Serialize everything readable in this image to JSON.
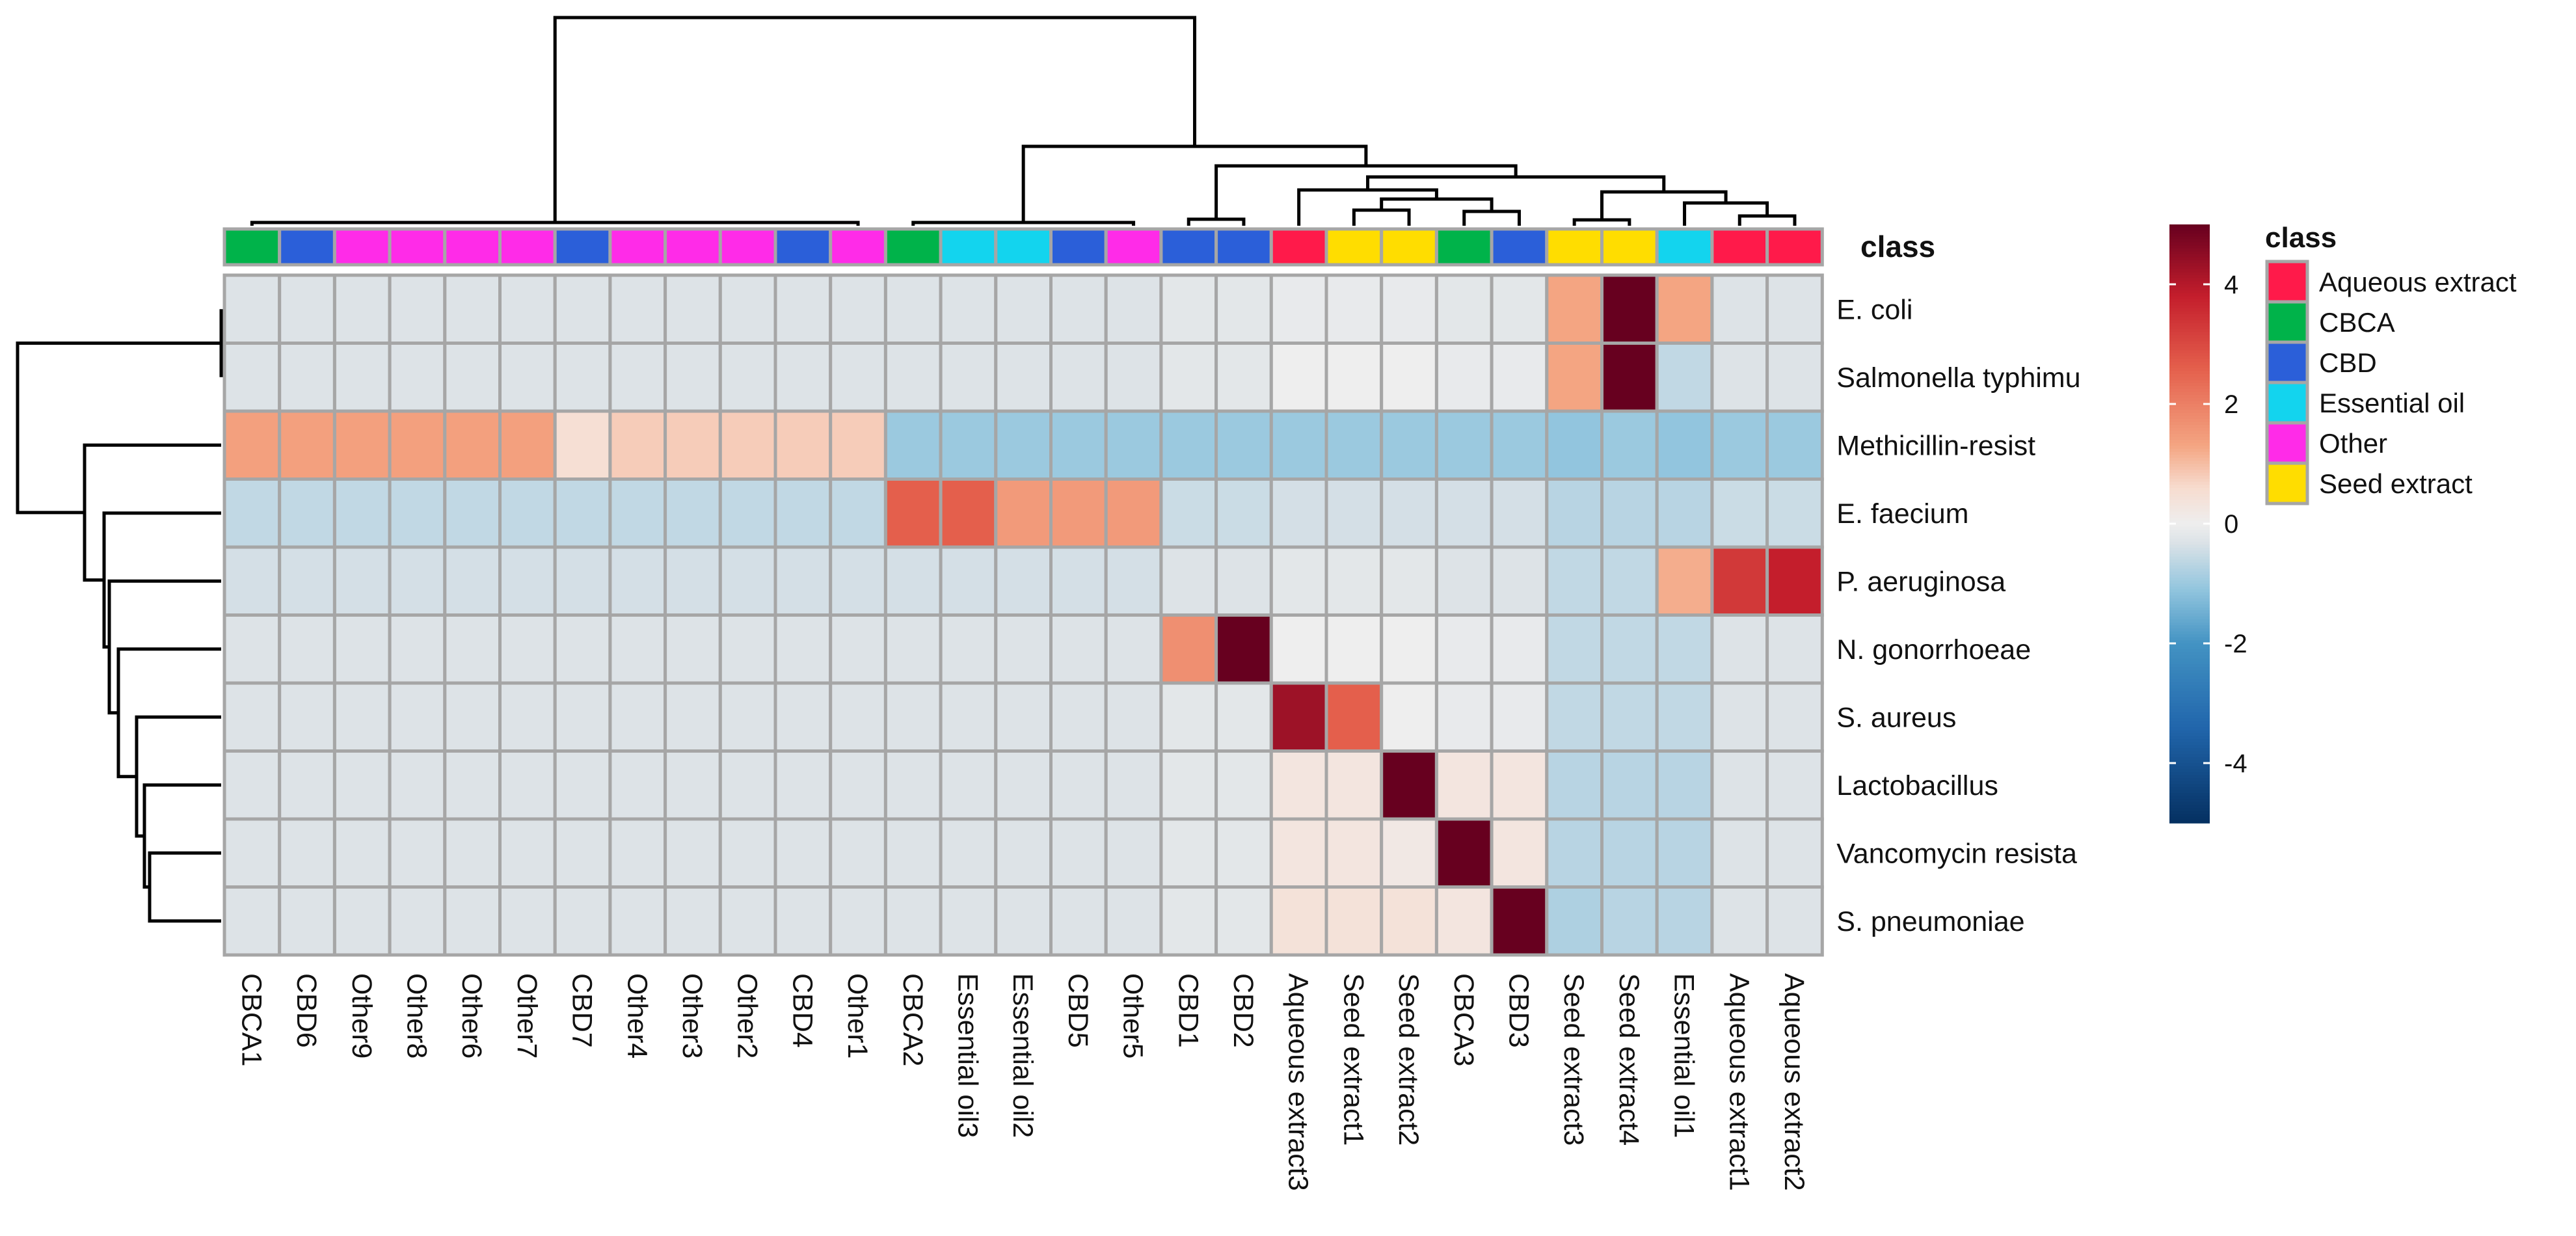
{
  "chart_data": {
    "type": "heatmap",
    "title": "",
    "columns": [
      "CBCA1",
      "CBD6",
      "Other9",
      "Other8",
      "Other6",
      "Other7",
      "CBD7",
      "Other4",
      "Other3",
      "Other2",
      "CBD4",
      "Other1",
      "CBCA2",
      "Essential oil3",
      "Essential oil2",
      "CBD5",
      "Other5",
      "CBD1",
      "CBD2",
      "Aqueous extract3",
      "Seed extract1",
      "Seed extract2",
      "CBCA3",
      "CBD3",
      "Seed extract3",
      "Seed extract4",
      "Essential oil1",
      "Aqueous extract1",
      "Aqueous extract2"
    ],
    "column_classes": [
      "CBCA",
      "CBD",
      "Other",
      "Other",
      "Other",
      "Other",
      "CBD",
      "Other",
      "Other",
      "Other",
      "CBD",
      "Other",
      "CBCA",
      "Essential oil",
      "Essential oil",
      "CBD",
      "Other",
      "CBD",
      "CBD",
      "Aqueous extract",
      "Seed extract",
      "Seed extract",
      "CBCA",
      "CBD",
      "Seed extract",
      "Seed extract",
      "Essential oil",
      "Aqueous extract",
      "Aqueous extract"
    ],
    "rows": [
      "E. coli",
      "Salmonella typhimu",
      "Methicillin-resist",
      "E. faecium",
      "P. aeruginosa",
      "N. gonorrhoeae",
      "S. aureus",
      "Lactobacillus",
      "Vancomycin resista",
      "S. pneumoniae"
    ],
    "values": [
      [
        -0.3,
        -0.3,
        -0.3,
        -0.3,
        -0.3,
        -0.3,
        -0.3,
        -0.3,
        -0.3,
        -0.3,
        -0.3,
        -0.3,
        -0.3,
        -0.3,
        -0.3,
        -0.3,
        -0.3,
        -0.2,
        -0.2,
        -0.1,
        -0.1,
        -0.1,
        -0.2,
        -0.2,
        1.3,
        5.0,
        1.3,
        -0.3,
        -0.3
      ],
      [
        -0.3,
        -0.3,
        -0.3,
        -0.3,
        -0.3,
        -0.3,
        -0.3,
        -0.3,
        -0.3,
        -0.3,
        -0.3,
        -0.3,
        -0.3,
        -0.3,
        -0.3,
        -0.3,
        -0.3,
        -0.2,
        -0.2,
        0.0,
        0.0,
        0.0,
        -0.1,
        -0.1,
        1.3,
        5.0,
        -0.6,
        -0.3,
        -0.3
      ],
      [
        1.4,
        1.4,
        1.4,
        1.4,
        1.4,
        1.4,
        0.5,
        0.8,
        0.8,
        0.8,
        0.8,
        0.8,
        -1.0,
        -1.0,
        -1.0,
        -1.0,
        -1.0,
        -1.0,
        -1.0,
        -1.0,
        -1.0,
        -1.0,
        -1.0,
        -1.0,
        -1.1,
        -1.0,
        -1.1,
        -1.0,
        -1.0
      ],
      [
        -0.6,
        -0.6,
        -0.6,
        -0.6,
        -0.6,
        -0.6,
        -0.6,
        -0.6,
        -0.6,
        -0.6,
        -0.6,
        -0.6,
        2.6,
        2.6,
        1.5,
        1.5,
        1.5,
        -0.5,
        -0.5,
        -0.4,
        -0.4,
        -0.4,
        -0.4,
        -0.4,
        -0.7,
        -0.7,
        -0.7,
        -0.5,
        -0.5
      ],
      [
        -0.4,
        -0.4,
        -0.4,
        -0.4,
        -0.4,
        -0.4,
        -0.4,
        -0.4,
        -0.4,
        -0.4,
        -0.4,
        -0.4,
        -0.4,
        -0.4,
        -0.4,
        -0.4,
        -0.4,
        -0.3,
        -0.3,
        -0.2,
        -0.2,
        -0.2,
        -0.3,
        -0.3,
        -0.6,
        -0.6,
        1.2,
        3.3,
        3.8
      ],
      [
        -0.3,
        -0.3,
        -0.3,
        -0.3,
        -0.3,
        -0.3,
        -0.3,
        -0.3,
        -0.3,
        -0.3,
        -0.3,
        -0.3,
        -0.3,
        -0.3,
        -0.3,
        -0.3,
        -0.3,
        1.7,
        5.0,
        0.0,
        0.0,
        0.0,
        -0.1,
        -0.1,
        -0.6,
        -0.6,
        -0.6,
        -0.3,
        -0.3
      ],
      [
        -0.3,
        -0.3,
        -0.3,
        -0.3,
        -0.3,
        -0.3,
        -0.3,
        -0.3,
        -0.3,
        -0.3,
        -0.3,
        -0.3,
        -0.3,
        -0.3,
        -0.3,
        -0.3,
        -0.3,
        -0.2,
        -0.2,
        4.3,
        2.6,
        0.0,
        -0.1,
        -0.1,
        -0.6,
        -0.6,
        -0.6,
        -0.3,
        -0.3
      ],
      [
        -0.3,
        -0.3,
        -0.3,
        -0.3,
        -0.3,
        -0.3,
        -0.3,
        -0.3,
        -0.3,
        -0.3,
        -0.3,
        -0.3,
        -0.3,
        -0.3,
        -0.3,
        -0.3,
        -0.3,
        -0.2,
        -0.2,
        0.3,
        0.3,
        5.0,
        0.3,
        0.3,
        -0.7,
        -0.7,
        -0.7,
        -0.3,
        -0.3
      ],
      [
        -0.3,
        -0.3,
        -0.3,
        -0.3,
        -0.3,
        -0.3,
        -0.3,
        -0.3,
        -0.3,
        -0.3,
        -0.3,
        -0.3,
        -0.3,
        -0.3,
        -0.3,
        -0.3,
        -0.3,
        -0.2,
        -0.2,
        0.3,
        0.3,
        0.2,
        5.0,
        0.3,
        -0.7,
        -0.7,
        -0.7,
        -0.3,
        -0.3
      ],
      [
        -0.3,
        -0.3,
        -0.3,
        -0.3,
        -0.3,
        -0.3,
        -0.3,
        -0.3,
        -0.3,
        -0.3,
        -0.3,
        -0.3,
        -0.3,
        -0.3,
        -0.3,
        -0.3,
        -0.3,
        -0.2,
        -0.2,
        0.4,
        0.4,
        0.4,
        0.3,
        5.0,
        -0.8,
        -0.7,
        -0.7,
        -0.3,
        -0.3
      ]
    ],
    "color_scale": {
      "min": -5,
      "max": 5,
      "ticks": [
        4,
        2,
        0,
        -2,
        -4
      ],
      "tick_labels": [
        "4",
        "2",
        "0",
        "-2",
        "-4"
      ],
      "low": "#053061",
      "mid": "#f7f7f7",
      "high": "#67001f"
    },
    "annotation_row_label": "class",
    "legend": {
      "title": "class",
      "items": [
        {
          "name": "Aqueous extract",
          "color": "#ff1a4a"
        },
        {
          "name": "CBCA",
          "color": "#00b34a"
        },
        {
          "name": "CBD",
          "color": "#2b5fd9"
        },
        {
          "name": "Essential oil",
          "color": "#13d4ee"
        },
        {
          "name": "Other",
          "color": "#ff2be8"
        },
        {
          "name": "Seed extract",
          "color": "#ffdd00"
        }
      ]
    },
    "row_dendrogram_order": [
      "E. coli",
      "Salmonella typhimu",
      "Methicillin-resist",
      "E. faecium",
      "P. aeruginosa",
      "N. gonorrhoeae",
      "S. aureus",
      "Lactobacillus",
      "Vancomycin resista",
      "S. pneumoniae"
    ],
    "column_dendrogram": "hierarchical clustering tree above columns"
  }
}
